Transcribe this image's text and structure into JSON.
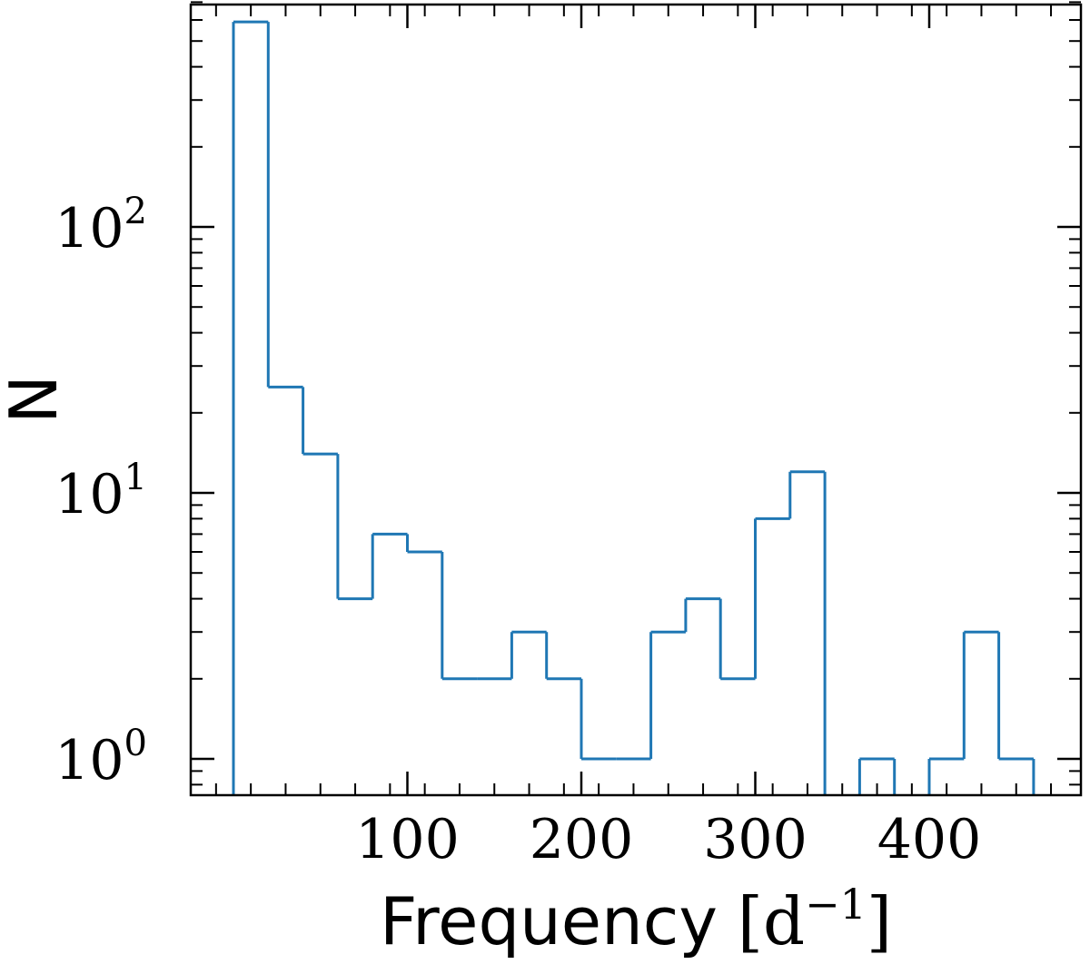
{
  "chart_data": {
    "type": "histogram",
    "title": "",
    "xlabel": "Frequency",
    "xlabel_unit_base": "d",
    "xlabel_unit_exp": "−1",
    "ylabel": "N",
    "yscale": "log",
    "xlim": [
      -10,
      475
    ],
    "ylim": [
      0.75,
      700
    ],
    "bin_edges": [
      0,
      20,
      40,
      60,
      80,
      100,
      120,
      140,
      160,
      180,
      200,
      220,
      240,
      260,
      280,
      300,
      320,
      340,
      360,
      380,
      400,
      420,
      440,
      460
    ],
    "counts": [
      590,
      25,
      14,
      4,
      7,
      6,
      2,
      2,
      3,
      2,
      1,
      1,
      3,
      4,
      2,
      8,
      12,
      0,
      1,
      0,
      1,
      3,
      1
    ],
    "x_ticks": [
      {
        "value": 100,
        "label": "100"
      },
      {
        "value": 200,
        "label": "200"
      },
      {
        "value": 300,
        "label": "300"
      },
      {
        "value": 400,
        "label": "400"
      }
    ],
    "y_ticks": [
      {
        "value": 1,
        "base": "10",
        "exp": "0"
      },
      {
        "value": 10,
        "base": "10",
        "exp": "1"
      },
      {
        "value": 100,
        "base": "10",
        "exp": "2"
      }
    ],
    "grid": false,
    "legend": "none",
    "series_color": "#1f77b4"
  }
}
